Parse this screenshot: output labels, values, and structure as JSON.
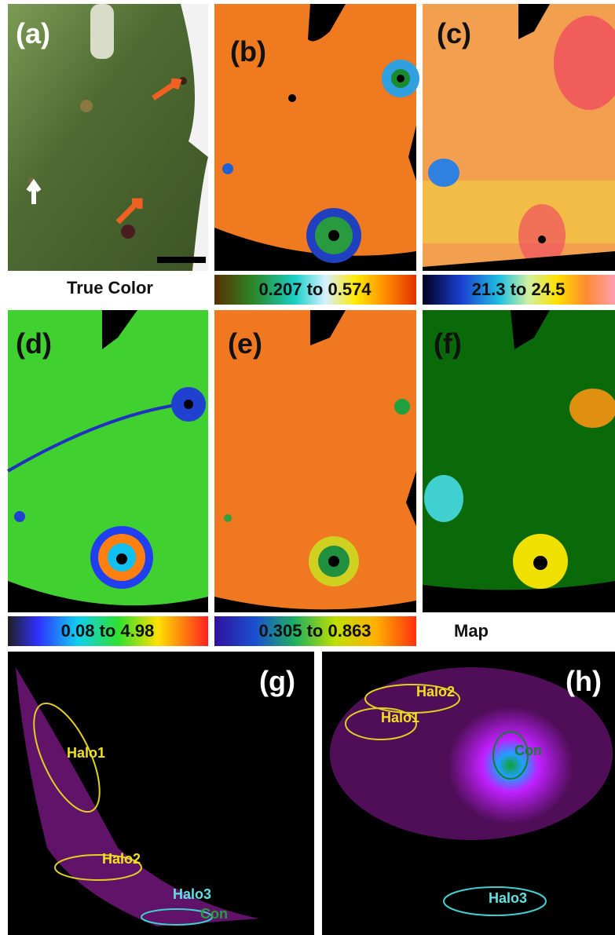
{
  "panels": [
    {
      "label": "(a)",
      "caption": "True Color"
    },
    {
      "label": "(b)",
      "caption": "0.207 to 0.574"
    },
    {
      "label": "(c)",
      "caption": "21.3 to 24.5"
    },
    {
      "label": "(d)",
      "caption": "0.08 to 4.98"
    },
    {
      "label": "(e)",
      "caption": "0.305 to 0.863"
    },
    {
      "label": "(f)",
      "caption": "Map"
    }
  ],
  "scatter_panels": [
    {
      "label": "(g)",
      "clusters": [
        "Halo1",
        "Halo2",
        "Halo3",
        "Con"
      ]
    },
    {
      "label": "(h)",
      "clusters": [
        "Halo2",
        "Halo1",
        "Con",
        "Halo3"
      ]
    }
  ]
}
